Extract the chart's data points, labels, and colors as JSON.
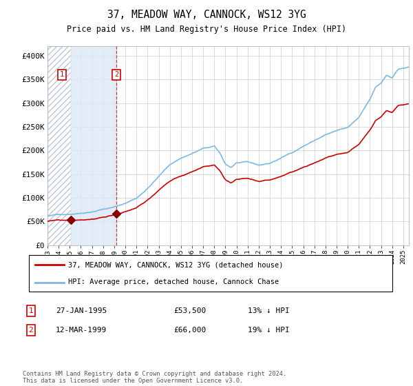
{
  "title": "37, MEADOW WAY, CANNOCK, WS12 3YG",
  "subtitle": "Price paid vs. HM Land Registry's House Price Index (HPI)",
  "ylim": [
    0,
    420000
  ],
  "yticks": [
    0,
    50000,
    100000,
    150000,
    200000,
    250000,
    300000,
    350000,
    400000
  ],
  "ytick_labels": [
    "£0",
    "£50K",
    "£100K",
    "£150K",
    "£200K",
    "£250K",
    "£300K",
    "£350K",
    "£400K"
  ],
  "sale1_date_num": 1995.075,
  "sale1_price": 53500,
  "sale1_label": "1",
  "sale1_text": "27-JAN-1995",
  "sale1_amount": "£53,500",
  "sale1_pct": "13% ↓ HPI",
  "sale2_date_num": 1999.19,
  "sale2_price": 66000,
  "sale2_label": "2",
  "sale2_text": "12-MAR-1999",
  "sale2_amount": "£66,000",
  "sale2_pct": "19% ↓ HPI",
  "hpi_color": "#7ab8e8",
  "price_color": "#cc0000",
  "sale_marker_color": "#880000",
  "legend_line1": "37, MEADOW WAY, CANNOCK, WS12 3YG (detached house)",
  "legend_line2": "HPI: Average price, detached house, Cannock Chase",
  "footer": "Contains HM Land Registry data © Crown copyright and database right 2024.\nThis data is licensed under the Open Government Licence v3.0.",
  "background_color": "#ffffff",
  "plot_bg_color": "#ffffff",
  "grid_color": "#cccccc",
  "shade_color": "#dce8f5",
  "xlim_start": 1993.0,
  "xlim_end": 2025.5
}
